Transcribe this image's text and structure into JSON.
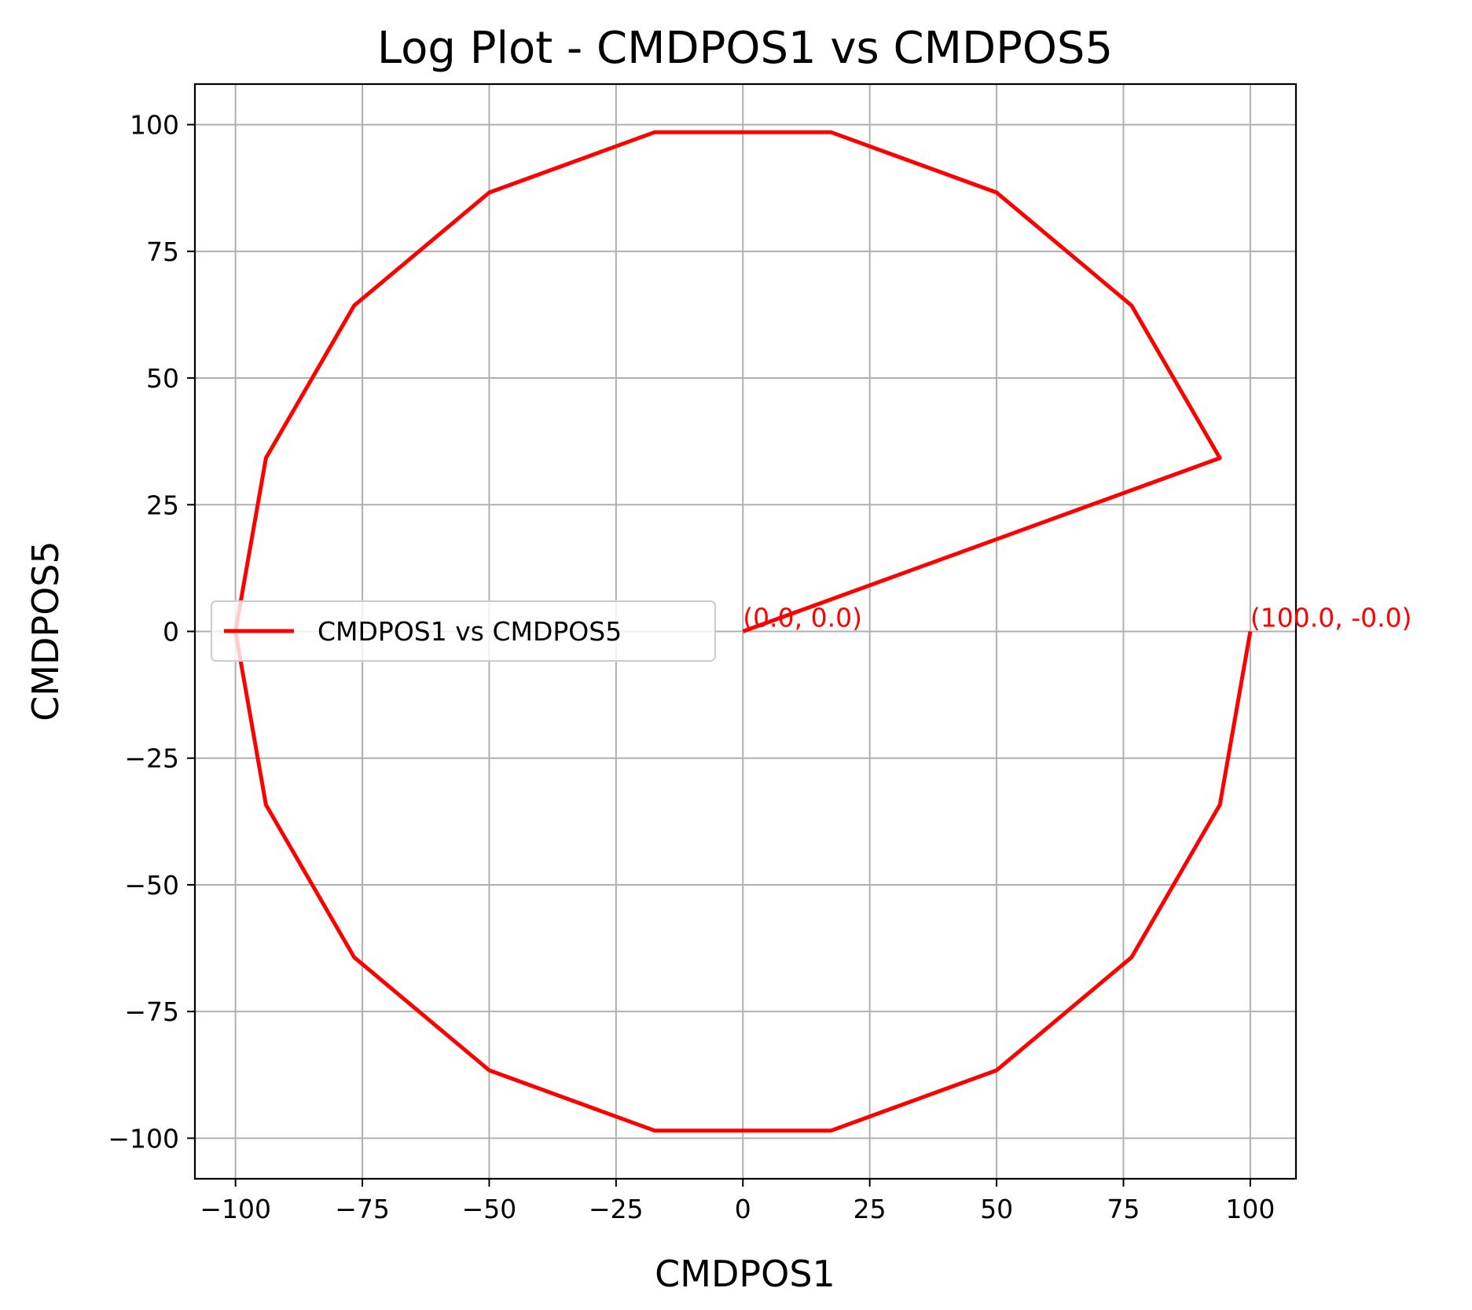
{
  "chart_data": {
    "type": "line",
    "title": "Log Plot - CMDPOS1 vs CMDPOS5",
    "xlabel": "CMDPOS1",
    "ylabel": "CMDPOS5",
    "xlim": [
      -108,
      109
    ],
    "ylim": [
      -108,
      108
    ],
    "xticks": [
      -100,
      -75,
      -50,
      -25,
      0,
      25,
      50,
      75,
      100
    ],
    "yticks": [
      -100,
      -75,
      -50,
      -25,
      0,
      25,
      50,
      75,
      100
    ],
    "xtick_labels": [
      "−100",
      "−75",
      "−50",
      "−25",
      "0",
      "25",
      "50",
      "75",
      "100"
    ],
    "ytick_labels": [
      "−100",
      "−75",
      "−50",
      "−25",
      "0",
      "25",
      "50",
      "75",
      "100"
    ],
    "grid": true,
    "legend_position": "center-left",
    "series": [
      {
        "name": "CMDPOS1 vs CMDPOS5",
        "color": "#ff0000",
        "x": [
          0,
          94.0,
          76.6,
          50.0,
          17.4,
          -17.4,
          -50.0,
          -76.6,
          -94.0,
          -100.0,
          -94.0,
          -76.6,
          -50.0,
          -17.4,
          17.4,
          50.0,
          76.6,
          94.0,
          100.0
        ],
        "y": [
          0,
          34.2,
          64.3,
          86.6,
          98.5,
          98.5,
          86.6,
          64.3,
          34.2,
          0.0,
          -34.2,
          -64.3,
          -86.6,
          -98.5,
          -98.5,
          -86.6,
          -64.3,
          -34.2,
          0.0
        ]
      }
    ],
    "annotations": [
      {
        "text": "(0.0, 0.0)",
        "x": 0,
        "y": 0,
        "color": "#ff0000"
      },
      {
        "text": "(100.0, -0.0)",
        "x": 100,
        "y": 0,
        "color": "#ff0000"
      }
    ]
  }
}
